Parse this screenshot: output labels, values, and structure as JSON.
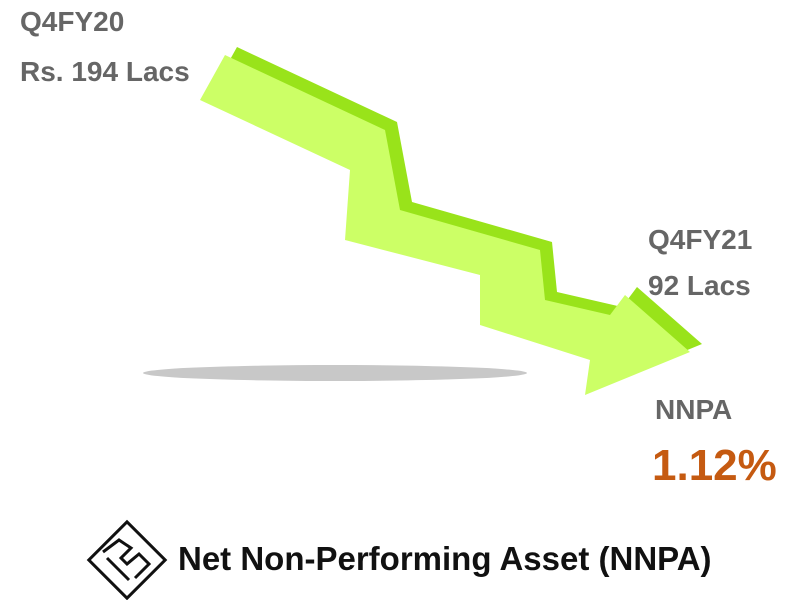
{
  "start": {
    "period": "Q4FY20",
    "amount": "Rs. 194 Lacs"
  },
  "end": {
    "period": "Q4FY21",
    "amount": "92 Lacs"
  },
  "metric": {
    "label": "NNPA",
    "value": "1.12%"
  },
  "footer": {
    "title": "Net Non-Performing Asset (NNPA)"
  }
}
